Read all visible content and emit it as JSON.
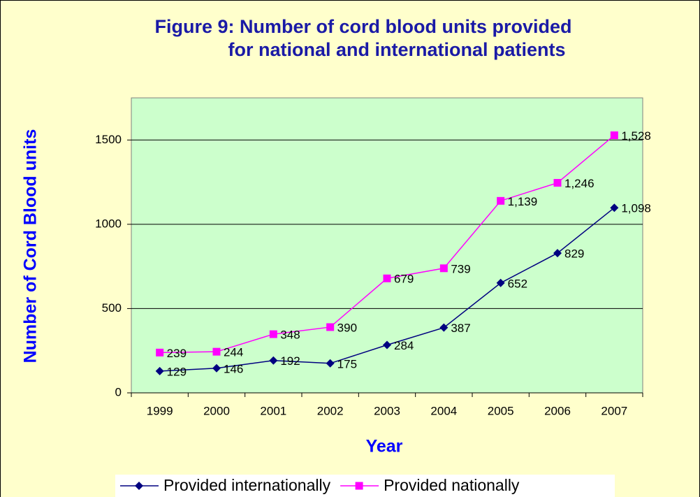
{
  "chart_data": {
    "type": "line",
    "title": [
      "Figure 9: Number of cord blood units provided",
      "for national and international patients"
    ],
    "xlabel": "Year",
    "ylabel": "Number of Cord Blood units",
    "categories": [
      "1999",
      "2000",
      "2001",
      "2002",
      "2003",
      "2004",
      "2005",
      "2006",
      "2007"
    ],
    "series": [
      {
        "name": "Provided internationally",
        "color": "#000080",
        "marker": "diamond",
        "values": [
          129,
          146,
          192,
          175,
          284,
          387,
          652,
          829,
          1098
        ],
        "value_labels": [
          "129",
          "146",
          "192",
          "175",
          "284",
          "387",
          "652",
          "829",
          "1,098"
        ]
      },
      {
        "name": "Provided nationally",
        "color": "#ff00ff",
        "marker": "square",
        "values": [
          239,
          244,
          348,
          390,
          679,
          739,
          1139,
          1246,
          1528
        ],
        "value_labels": [
          "239",
          "244",
          "348",
          "390",
          "679",
          "739",
          "1,139",
          "1,246",
          "1,528"
        ]
      }
    ],
    "ylim": [
      0,
      1750
    ],
    "yticks": [
      0,
      500,
      1000,
      1500
    ],
    "grid": true,
    "legend": "bottom"
  }
}
